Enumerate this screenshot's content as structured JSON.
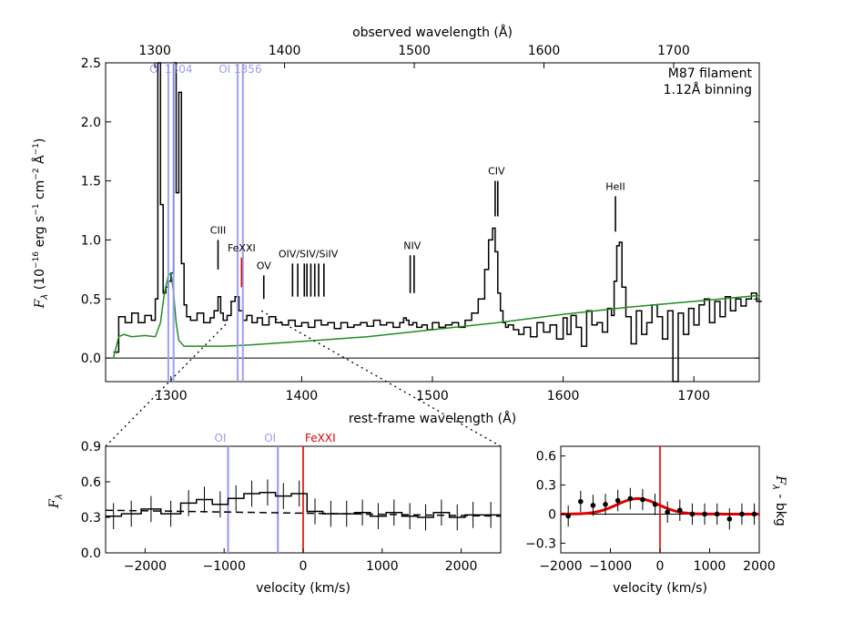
{
  "colors": {
    "data": "#000000",
    "model": "#228b22",
    "oi": "#9c9cf0",
    "fexxi": "#e00000",
    "fit": "#e00000"
  },
  "chart_data": [
    {
      "type": "line",
      "name": "spectrum",
      "title": "M87 filament",
      "subtitle": "1.12Å binning",
      "xlabel": "rest-frame wavelength (Å)",
      "x2label": "observed wavelength (Å)",
      "ylabel": "F_λ (10⁻¹⁶ erg s⁻¹ cm⁻² Å⁻¹)",
      "ylabel_parts": {
        "f": "F",
        "lam": "λ",
        "a": " (10",
        "b": "−16",
        "c": " erg s",
        "d": "−1",
        "e": " cm",
        "g": "−2",
        "h": " Å",
        "i": "−1",
        "j": ")"
      },
      "xlim": [
        1250,
        1750
      ],
      "ylim": [
        -0.2,
        2.5
      ],
      "x2lim": [
        1262,
        1766
      ],
      "xticks": [
        1300,
        1400,
        1500,
        1600,
        1700
      ],
      "x2ticks": [
        1300,
        1400,
        1500,
        1600,
        1700
      ],
      "yticks": [
        0.0,
        0.5,
        1.0,
        1.5,
        2.0,
        2.5
      ],
      "ytick_labels": [
        "0.0",
        "0.5",
        "1.0",
        "1.5",
        "2.0",
        "2.5"
      ],
      "series": [
        {
          "name": "observed",
          "kind": "step",
          "x": [
            1256,
            1260,
            1265,
            1270,
            1275,
            1280,
            1285,
            1288,
            1290,
            1292,
            1294,
            1296,
            1298,
            1300,
            1302,
            1304,
            1306,
            1308,
            1310,
            1312,
            1315,
            1320,
            1325,
            1330,
            1333,
            1336,
            1338,
            1340,
            1343,
            1346,
            1349,
            1352,
            1355,
            1358,
            1362,
            1366,
            1370,
            1375,
            1380,
            1385,
            1390,
            1395,
            1400,
            1405,
            1410,
            1415,
            1420,
            1425,
            1430,
            1435,
            1440,
            1445,
            1450,
            1455,
            1460,
            1465,
            1470,
            1475,
            1478,
            1480,
            1482,
            1485,
            1488,
            1492,
            1496,
            1500,
            1505,
            1510,
            1515,
            1520,
            1525,
            1530,
            1535,
            1540,
            1543,
            1546,
            1548,
            1550,
            1552,
            1554,
            1556,
            1558,
            1562,
            1566,
            1570,
            1575,
            1580,
            1585,
            1590,
            1595,
            1600,
            1603,
            1606,
            1610,
            1614,
            1618,
            1622,
            1626,
            1630,
            1634,
            1637,
            1639,
            1641,
            1643,
            1645,
            1648,
            1652,
            1656,
            1660,
            1664,
            1668,
            1672,
            1676,
            1680,
            1684,
            1688,
            1692,
            1696,
            1700,
            1704,
            1708,
            1712,
            1716,
            1720,
            1724,
            1728,
            1732,
            1736,
            1740,
            1744,
            1748
          ],
          "y": [
            0.05,
            0.35,
            0.3,
            0.38,
            0.3,
            0.36,
            0.32,
            0.5,
            2.5,
            1.3,
            0.55,
            0.6,
            0.65,
            0.72,
            2.5,
            1.4,
            2.25,
            0.8,
            0.45,
            0.35,
            0.32,
            0.38,
            0.3,
            0.34,
            0.4,
            0.52,
            0.38,
            0.32,
            0.36,
            0.48,
            0.52,
            0.4,
            0.32,
            0.36,
            0.3,
            0.34,
            0.28,
            0.35,
            0.3,
            0.28,
            0.32,
            0.27,
            0.3,
            0.26,
            0.32,
            0.28,
            0.3,
            0.25,
            0.3,
            0.26,
            0.28,
            0.3,
            0.27,
            0.32,
            0.28,
            0.3,
            0.26,
            0.3,
            0.34,
            0.32,
            0.28,
            0.3,
            0.26,
            0.28,
            0.24,
            0.3,
            0.26,
            0.28,
            0.3,
            0.26,
            0.32,
            0.38,
            0.5,
            0.75,
            1.0,
            1.1,
            0.9,
            0.55,
            0.4,
            0.3,
            0.26,
            0.28,
            0.24,
            0.2,
            0.26,
            0.18,
            0.3,
            0.22,
            0.28,
            0.16,
            0.34,
            0.2,
            0.36,
            0.26,
            0.1,
            0.4,
            0.28,
            0.3,
            0.22,
            0.42,
            0.36,
            0.65,
            0.95,
            0.98,
            0.6,
            0.35,
            0.12,
            0.4,
            0.2,
            0.3,
            0.45,
            0.35,
            0.16,
            0.4,
            -0.2,
            0.38,
            0.2,
            0.42,
            0.28,
            0.45,
            0.5,
            0.3,
            0.48,
            0.35,
            0.52,
            0.4,
            0.5,
            0.44,
            0.5,
            0.55,
            0.48
          ]
        },
        {
          "name": "model",
          "kind": "line",
          "x": [
            1256,
            1260,
            1264,
            1270,
            1280,
            1288,
            1292,
            1295,
            1298,
            1300,
            1302,
            1304,
            1306,
            1310,
            1320,
            1340,
            1360,
            1400,
            1450,
            1500,
            1550,
            1600,
            1650,
            1700,
            1750
          ],
          "y": [
            0.0,
            0.18,
            0.2,
            0.18,
            0.19,
            0.18,
            0.3,
            0.55,
            0.7,
            0.72,
            0.55,
            0.3,
            0.15,
            0.1,
            0.1,
            0.1,
            0.11,
            0.14,
            0.18,
            0.24,
            0.3,
            0.37,
            0.43,
            0.48,
            0.53
          ]
        }
      ],
      "lines": [
        {
          "label": "CIII",
          "x": [
            1336
          ],
          "y_top": 1.0,
          "y_bottom": 0.75,
          "color": "#000000"
        },
        {
          "label": "FeXXI",
          "x": [
            1354
          ],
          "y_top": 0.85,
          "y_bottom": 0.6,
          "color": "#e00000"
        },
        {
          "label": "OV",
          "x": [
            1371
          ],
          "y_top": 0.7,
          "y_bottom": 0.5,
          "color": "#000000"
        },
        {
          "label": "OIV/SIV/SiIV",
          "x": [
            1393,
            1397,
            1402,
            1404,
            1407,
            1410,
            1413,
            1417
          ],
          "y_top": 0.8,
          "y_bottom": 0.52,
          "color": "#000000"
        },
        {
          "label": "NIV",
          "x": [
            1483,
            1486
          ],
          "y_top": 0.87,
          "y_bottom": 0.55,
          "color": "#000000"
        },
        {
          "label": "CIV",
          "x": [
            1548,
            1550
          ],
          "y_top": 1.5,
          "y_bottom": 1.2,
          "color": "#000000"
        },
        {
          "label": "HeII",
          "x": [
            1640
          ],
          "y_top": 1.37,
          "y_bottom": 1.07,
          "color": "#000000"
        }
      ],
      "oi_bands": [
        {
          "label": "OI 1304",
          "x": [
            1298,
            1302
          ]
        },
        {
          "label": "OI 1356",
          "x": [
            1351,
            1355
          ]
        }
      ]
    },
    {
      "type": "line",
      "name": "velocity-profile",
      "xlabel": "velocity (km/s)",
      "ylabel": "F_λ",
      "ylabel_parts": {
        "f": "F",
        "lam": "λ"
      },
      "xlim": [
        -2500,
        2500
      ],
      "ylim": [
        0.0,
        0.9
      ],
      "xticks": [
        -2000,
        -1000,
        0,
        1000,
        2000
      ],
      "xtick_labels": [
        "−2000",
        "−1000",
        "0",
        "1000",
        "2000"
      ],
      "yticks": [
        0.0,
        0.3,
        0.6,
        0.9
      ],
      "ytick_labels": [
        "0.0",
        "0.3",
        "0.6",
        "0.9"
      ],
      "markers": [
        {
          "label": "OI",
          "x": -950,
          "color": "#9c9cf0"
        },
        {
          "label": "OI",
          "x": -320,
          "color": "#9c9cf0"
        },
        {
          "label": "FeXXI",
          "x": 0,
          "color": "#e00000"
        }
      ],
      "series": [
        {
          "name": "binned",
          "kind": "step",
          "x": [
            -2500,
            -2300,
            -2050,
            -1800,
            -1550,
            -1350,
            -1150,
            -950,
            -750,
            -550,
            -350,
            -150,
            50,
            250,
            450,
            650,
            850,
            1050,
            1250,
            1450,
            1650,
            1850,
            2050,
            2250,
            2500
          ],
          "y": [
            0.31,
            0.33,
            0.37,
            0.33,
            0.42,
            0.45,
            0.41,
            0.46,
            0.5,
            0.51,
            0.48,
            0.5,
            0.35,
            0.33,
            0.33,
            0.34,
            0.31,
            0.34,
            0.31,
            0.3,
            0.34,
            0.3,
            0.32,
            0.32,
            0.32
          ],
          "err": 0.11
        },
        {
          "name": "continuum",
          "kind": "dashed",
          "x": [
            -2500,
            2500
          ],
          "y": [
            0.36,
            0.31
          ]
        }
      ]
    },
    {
      "type": "scatter",
      "name": "residual",
      "xlabel": "velocity (km/s)",
      "ylabel": "F_λ - bkg",
      "ylabel_parts": {
        "f": "F",
        "lam": "λ",
        "rest": " - bkg"
      },
      "xlim": [
        -2000,
        2000
      ],
      "ylim": [
        -0.4,
        0.7
      ],
      "xticks": [
        -2000,
        -1000,
        0,
        1000,
        2000
      ],
      "xtick_labels": [
        "−2000",
        "−1000",
        "0",
        "1000",
        "2000"
      ],
      "yticks": [
        -0.3,
        0.0,
        0.3,
        0.6
      ],
      "ytick_labels": [
        "−0.3",
        "0",
        "0.3",
        "0.6"
      ],
      "points": {
        "x": [
          -1850,
          -1600,
          -1350,
          -1100,
          -850,
          -600,
          -350,
          -100,
          150,
          400,
          650,
          900,
          1150,
          1400,
          1650,
          1900
        ],
        "y": [
          -0.02,
          0.13,
          0.09,
          0.1,
          0.14,
          0.16,
          0.15,
          0.1,
          0.02,
          0.04,
          0.0,
          0.0,
          0.0,
          -0.05,
          0.0,
          0.0
        ],
        "err": 0.11
      },
      "fit": {
        "amplitude": 0.16,
        "center": -450,
        "sigma": 420
      },
      "markers": [
        {
          "label": "",
          "x": 0,
          "color": "#e00000"
        }
      ]
    }
  ]
}
